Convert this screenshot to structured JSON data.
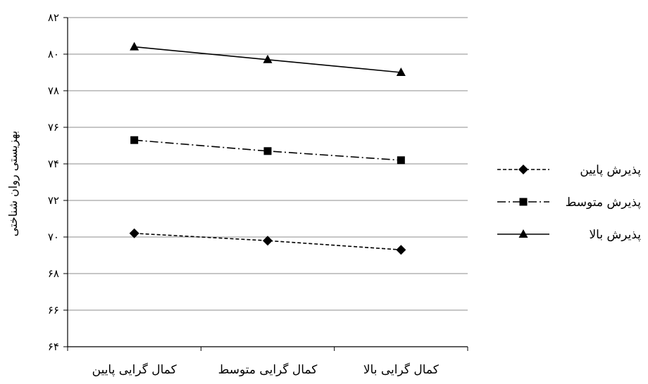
{
  "chart_data": {
    "type": "line",
    "categories": [
      "کمال گرایی پایین",
      "کمال گرایی متوسط",
      "کمال گرایی بالا"
    ],
    "series": [
      {
        "name": "پذیرش پایین",
        "values": [
          70.2,
          69.8,
          69.3
        ],
        "marker": "diamond",
        "dash": "dashed",
        "color": "#000000"
      },
      {
        "name": "پذیرش متوسط",
        "values": [
          75.3,
          74.7,
          74.2
        ],
        "marker": "square",
        "dash": "dash-dot",
        "color": "#000000"
      },
      {
        "name": "پذیرش بالا",
        "values": [
          80.4,
          79.7,
          79.0
        ],
        "marker": "triangle",
        "dash": "solid",
        "color": "#000000"
      }
    ],
    "title": "",
    "xlabel": "",
    "ylabel": "بهزیستی روان شناختی",
    "ylim": [
      64,
      82
    ],
    "yticks": [
      64,
      66,
      68,
      70,
      72,
      74,
      76,
      78,
      80,
      82
    ],
    "ytick_labels": [
      "۶۴",
      "۶۶",
      "۶۸",
      "۷۰",
      "۷۲",
      "۷۴",
      "۷۶",
      "۷۸",
      "۸۰",
      "۸۲"
    ],
    "grid": "horizontal",
    "legend_position": "right"
  }
}
